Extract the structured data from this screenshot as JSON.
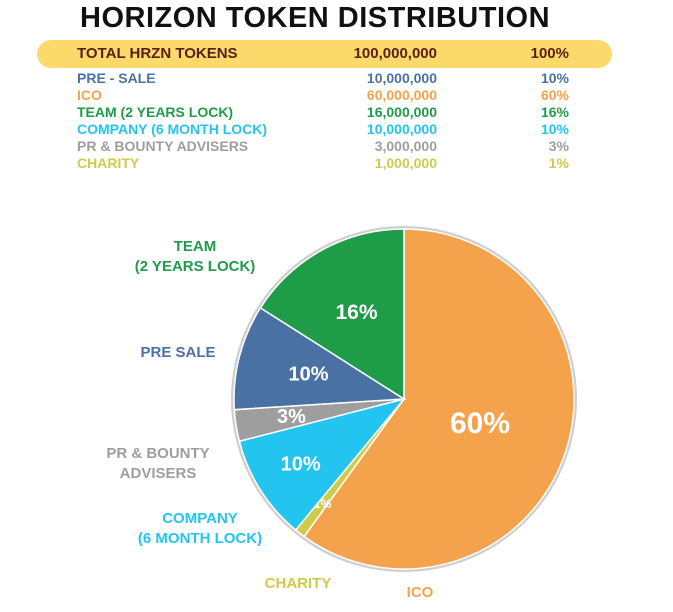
{
  "title": "HORIZON TOKEN DISTRIBUTION",
  "total": {
    "label": "TOTAL HRZN TOKENS",
    "amount": "100,000,000",
    "percent": "100%"
  },
  "colors": {
    "presale": "#4a71a4",
    "ico": "#f5a24d",
    "team": "#1f9c48",
    "company": "#23c5f0",
    "pr": "#9e9e9e",
    "charity": "#cfcb4a",
    "total_bg": "#fcd96b",
    "total_text": "#5a1e12",
    "pie_outline": "#cfcfcf"
  },
  "rows": [
    {
      "key": "presale",
      "label": "PRE - SALE",
      "amount": "10,000,000",
      "percent": "10%"
    },
    {
      "key": "ico",
      "label": "ICO",
      "amount": "60,000,000",
      "percent": "60%"
    },
    {
      "key": "team",
      "label": "TEAM (2 YEARS LOCK)",
      "amount": "16,000,000",
      "percent": "16%"
    },
    {
      "key": "company",
      "label": "COMPANY (6 MONTH LOCK)",
      "amount": "10,000,000",
      "percent": "10%"
    },
    {
      "key": "pr",
      "label": "PR & BOUNTY ADVISERS",
      "amount": "3,000,000",
      "percent": "3%"
    },
    {
      "key": "charity",
      "label": "CHARITY",
      "amount": "1,000,000",
      "percent": "1%"
    }
  ],
  "callouts": {
    "team_line1": "TEAM",
    "team_line2": "(2 YEARS LOCK)",
    "presale": "PRE SALE",
    "pr_line1": "PR & BOUNTY",
    "pr_line2": "ADVISERS",
    "company_line1": "COMPANY",
    "company_line2": "(6 MONTH LOCK)",
    "charity": "CHARITY",
    "ico": "ICO"
  },
  "chart_data": {
    "type": "pie",
    "title": "HORIZON TOKEN DISTRIBUTION",
    "start": "12 o'clock",
    "direction": "clockwise",
    "slices": [
      {
        "key": "ico",
        "label": "ICO",
        "value": 60,
        "display": "60%",
        "color": "#f5a24d"
      },
      {
        "key": "charity",
        "label": "CHARITY",
        "value": 1,
        "display": "1%",
        "color": "#cfcb4a"
      },
      {
        "key": "company",
        "label": "COMPANY (6 MONTH LOCK)",
        "value": 10,
        "display": "10%",
        "color": "#23c5f0"
      },
      {
        "key": "pr",
        "label": "PR & BOUNTY ADVISERS",
        "value": 3,
        "display": "3%",
        "color": "#9e9e9e"
      },
      {
        "key": "presale",
        "label": "PRE SALE",
        "value": 10,
        "display": "10%",
        "color": "#4a71a4"
      },
      {
        "key": "team",
        "label": "TEAM (2 YEARS LOCK)",
        "value": 16,
        "display": "16%",
        "color": "#1f9c48"
      }
    ]
  }
}
